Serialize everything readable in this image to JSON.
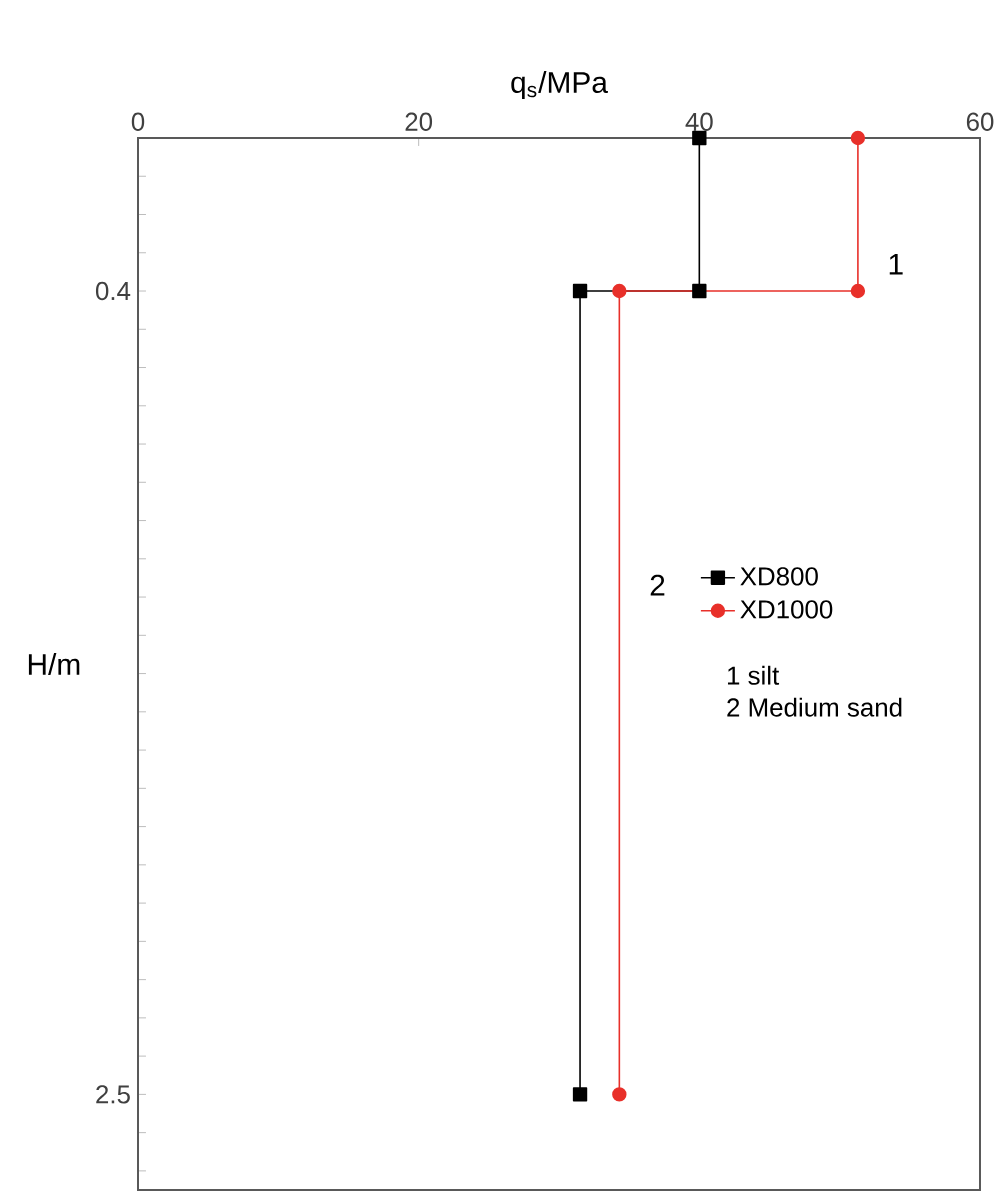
{
  "chart_data": {
    "type": "line",
    "xlabel": "q$_{s}$/MPa",
    "ylabel": "H/m",
    "xlim": [
      0,
      60
    ],
    "xticks": [
      0,
      20,
      40,
      60
    ],
    "ylim": [
      2.75,
      0
    ],
    "yticks": [
      {
        "value": 0.1,
        "label": null
      },
      {
        "value": 0.2,
        "label": null
      },
      {
        "value": 0.3,
        "label": null
      },
      0.4,
      {
        "value": 0.5,
        "label": null
      },
      {
        "value": 0.6,
        "label": null
      },
      {
        "value": 0.7,
        "label": null
      },
      {
        "value": 0.8,
        "label": null
      },
      {
        "value": 0.9,
        "label": null
      },
      {
        "value": 1.0,
        "label": null
      },
      {
        "value": 1.1,
        "label": null
      },
      {
        "value": 1.2,
        "label": null
      },
      {
        "value": 1.3,
        "label": null
      },
      {
        "value": 1.4,
        "label": null
      },
      {
        "value": 1.5,
        "label": null
      },
      {
        "value": 1.6,
        "label": null
      },
      {
        "value": 1.7,
        "label": null
      },
      {
        "value": 1.8,
        "label": null
      },
      {
        "value": 1.9,
        "label": null
      },
      {
        "value": 2.0,
        "label": null
      },
      {
        "value": 2.1,
        "label": null
      },
      {
        "value": 2.2,
        "label": null
      },
      {
        "value": 2.3,
        "label": null
      },
      {
        "value": 2.4,
        "label": null
      },
      2.5,
      {
        "value": 2.6,
        "label": null
      },
      {
        "value": 2.7,
        "label": null
      }
    ],
    "series": [
      {
        "name": "XD800",
        "color": "#000000",
        "marker": "square",
        "x": [
          40,
          40,
          31.5,
          31.5
        ],
        "values": [
          0,
          0.4,
          0.4,
          2.5
        ]
      },
      {
        "name": "XD1000",
        "color": "#e8302a",
        "marker": "circle",
        "x": [
          51.3,
          51.3,
          34.3,
          34.3
        ],
        "values": [
          0,
          0.4,
          0.4,
          2.5
        ]
      }
    ],
    "legend": "right",
    "grid": false,
    "annotations": [
      "1",
      "2",
      "1 silt",
      "2 Medium sand"
    ]
  }
}
